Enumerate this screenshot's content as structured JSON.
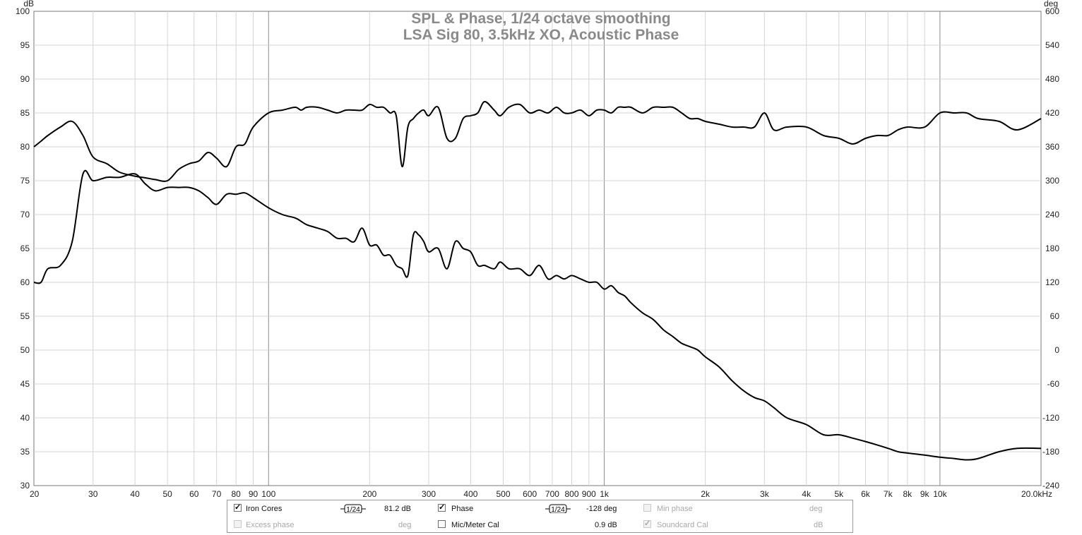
{
  "chart_data": {
    "type": "line",
    "title": "SPL & Phase, 1/24 octave smoothing",
    "subtitle": "LSA Sig 80, 3.5kHz XO, Acoustic Phase",
    "x_scale": "log",
    "xlim": [
      20,
      20000
    ],
    "x_ticks": [
      {
        "v": 20,
        "label": "20"
      },
      {
        "v": 30,
        "label": "30"
      },
      {
        "v": 40,
        "label": "40"
      },
      {
        "v": 50,
        "label": "50"
      },
      {
        "v": 60,
        "label": "60"
      },
      {
        "v": 70,
        "label": "70"
      },
      {
        "v": 80,
        "label": "80"
      },
      {
        "v": 90,
        "label": "90"
      },
      {
        "v": 100,
        "label": "100"
      },
      {
        "v": 200,
        "label": "200"
      },
      {
        "v": 300,
        "label": "300"
      },
      {
        "v": 400,
        "label": "400"
      },
      {
        "v": 500,
        "label": "500"
      },
      {
        "v": 600,
        "label": "600"
      },
      {
        "v": 700,
        "label": "700"
      },
      {
        "v": 800,
        "label": "800"
      },
      {
        "v": 900,
        "label": "900"
      },
      {
        "v": 1000,
        "label": "1k"
      },
      {
        "v": 2000,
        "label": "2k"
      },
      {
        "v": 3000,
        "label": "3k"
      },
      {
        "v": 4000,
        "label": "4k"
      },
      {
        "v": 5000,
        "label": "5k"
      },
      {
        "v": 6000,
        "label": "6k"
      },
      {
        "v": 7000,
        "label": "7k"
      },
      {
        "v": 8000,
        "label": "8k"
      },
      {
        "v": 9000,
        "label": "9k"
      },
      {
        "v": 10000,
        "label": "10k"
      },
      {
        "v": 20000,
        "label": "20.0kHz"
      }
    ],
    "y_left": {
      "unit": "dB",
      "ylim": [
        30,
        100
      ],
      "ticks": [
        30,
        35,
        40,
        45,
        50,
        55,
        60,
        65,
        70,
        75,
        80,
        85,
        90,
        95,
        100
      ]
    },
    "y_right": {
      "unit": "deg",
      "ylim": [
        -240,
        600
      ],
      "ticks": [
        -240,
        -180,
        -120,
        -60,
        0,
        60,
        120,
        180,
        240,
        300,
        360,
        420,
        480,
        540,
        600
      ]
    },
    "grid": true,
    "series": [
      {
        "name": "Iron Cores",
        "axis": "left",
        "color": "#000000",
        "x": [
          20,
          21,
          22,
          24,
          26,
          28,
          30,
          33,
          36,
          40,
          43,
          46,
          50,
          54,
          58,
          62,
          66,
          70,
          75,
          80,
          85,
          90,
          100,
          110,
          120,
          125,
          130,
          140,
          150,
          160,
          170,
          180,
          190,
          200,
          210,
          220,
          230,
          240,
          250,
          260,
          270,
          280,
          290,
          300,
          320,
          340,
          360,
          380,
          400,
          420,
          440,
          470,
          490,
          520,
          560,
          600,
          640,
          680,
          720,
          760,
          800,
          850,
          900,
          950,
          1000,
          1050,
          1100,
          1150,
          1200,
          1300,
          1400,
          1500,
          1600,
          1700,
          1800,
          1900,
          2000,
          2200,
          2400,
          2600,
          2800,
          3000,
          3200,
          3500,
          4000,
          4500,
          5000,
          5500,
          6000,
          6500,
          7000,
          7500,
          8000,
          9000,
          10000,
          11000,
          12000,
          13000,
          15000,
          17000,
          20000
        ],
        "y": [
          60,
          60,
          62,
          62.5,
          66,
          76,
          75,
          75.5,
          75.5,
          76,
          74.5,
          73.5,
          74,
          74,
          74,
          73.5,
          72.5,
          71.5,
          73,
          73,
          73.2,
          72.5,
          71,
          70,
          69.5,
          69,
          68.5,
          68,
          67.5,
          66.5,
          66.5,
          66,
          68,
          65.5,
          65.5,
          64,
          64,
          62.5,
          62,
          61,
          67,
          67,
          66,
          64.5,
          65,
          62,
          66,
          65,
          64.5,
          62.5,
          62.5,
          62,
          63,
          62,
          62,
          61,
          62.5,
          60.5,
          61,
          60.5,
          61,
          60.5,
          60,
          60,
          59,
          59.5,
          58.5,
          58,
          57,
          55.5,
          54.5,
          53,
          52,
          51,
          50.5,
          50,
          49,
          47.5,
          45.5,
          44,
          43,
          42.5,
          41.5,
          40,
          39,
          37.5,
          37.5,
          37,
          36.5,
          36,
          35.5,
          35,
          34.8,
          34.5,
          34.2,
          34,
          33.8,
          34,
          35,
          35.5,
          35.5
        ]
      },
      {
        "name": "Phase",
        "axis": "right",
        "color": "#000000",
        "x": [
          20,
          21,
          22,
          24,
          26,
          28,
          30,
          33,
          36,
          40,
          43,
          46,
          50,
          54,
          58,
          62,
          66,
          70,
          75,
          80,
          85,
          90,
          100,
          110,
          120,
          125,
          130,
          140,
          150,
          160,
          170,
          180,
          190,
          200,
          210,
          220,
          230,
          240,
          250,
          260,
          270,
          280,
          290,
          300,
          320,
          340,
          360,
          380,
          400,
          420,
          440,
          470,
          490,
          520,
          560,
          600,
          640,
          680,
          720,
          760,
          800,
          850,
          900,
          950,
          1000,
          1050,
          1100,
          1150,
          1200,
          1300,
          1400,
          1500,
          1600,
          1700,
          1800,
          1900,
          2000,
          2200,
          2400,
          2600,
          2800,
          3000,
          3200,
          3500,
          4000,
          4500,
          5000,
          5500,
          6000,
          6500,
          7000,
          7500,
          8000,
          9000,
          10000,
          11000,
          12000,
          13000,
          15000,
          17000,
          20000
        ],
        "y": [
          360,
          370,
          380,
          395,
          405,
          380,
          342,
          330,
          315,
          308,
          305,
          302,
          300,
          320,
          330,
          335,
          350,
          340,
          325,
          360,
          365,
          395,
          420,
          425,
          430,
          425,
          430,
          430,
          425,
          420,
          425,
          425,
          425,
          435,
          430,
          430,
          420,
          415,
          325,
          395,
          410,
          420,
          425,
          415,
          430,
          375,
          375,
          410,
          415,
          420,
          440,
          425,
          415,
          430,
          435,
          420,
          425,
          420,
          430,
          420,
          420,
          425,
          415,
          425,
          425,
          420,
          430,
          430,
          430,
          420,
          430,
          430,
          430,
          420,
          410,
          410,
          405,
          400,
          395,
          395,
          395,
          420,
          390,
          395,
          395,
          380,
          375,
          365,
          375,
          380,
          380,
          390,
          395,
          395,
          420,
          420,
          420,
          410,
          405,
          390,
          410
        ]
      }
    ]
  },
  "legend": {
    "row1": {
      "iron_cores": {
        "checked": true,
        "label": "Iron Cores",
        "smoothing": "1/24",
        "value": "81.2 dB"
      },
      "phase": {
        "checked": true,
        "label": "Phase",
        "smoothing": "1/24",
        "value": "-128 deg"
      },
      "min_phase": {
        "checked": false,
        "label": "Min phase",
        "unit": "deg"
      }
    },
    "row2": {
      "excess_phase": {
        "checked": false,
        "label": "Excess phase",
        "unit": "deg"
      },
      "mic_meter_cal": {
        "checked": false,
        "label": "Mic/Meter Cal",
        "value": "0.9 dB"
      },
      "soundcard_cal": {
        "checked": true,
        "label": "Soundcard Cal",
        "unit": "dB"
      }
    }
  }
}
